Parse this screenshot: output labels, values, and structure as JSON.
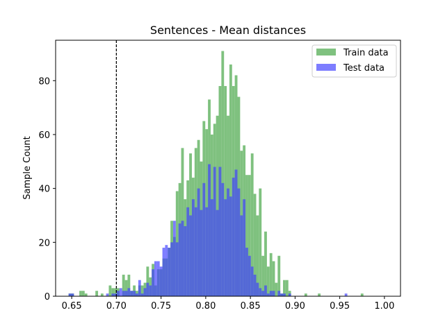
{
  "chart_data": {
    "type": "histogram",
    "title": "Sentences - Mean distances",
    "xlabel": "",
    "ylabel": "Sample Count",
    "xlim": [
      0.632,
      1.018
    ],
    "ylim": [
      0,
      95
    ],
    "xticks": [
      0.65,
      0.7,
      0.75,
      0.8,
      0.85,
      0.9,
      0.95,
      1.0
    ],
    "xtick_labels": [
      "0.65",
      "0.70",
      "0.75",
      "0.80",
      "0.85",
      "0.90",
      "0.95",
      "1.00"
    ],
    "yticks": [
      0,
      20,
      40,
      60,
      80
    ],
    "ytick_labels": [
      "0",
      "20",
      "40",
      "60",
      "80"
    ],
    "grid": false,
    "legend_position": "top-right",
    "bin_start": 0.6465,
    "bin_width": 0.003,
    "threshold_line": {
      "x": 0.7,
      "style": "dashed"
    },
    "series": [
      {
        "name": "Train data",
        "color": "#7fc17f",
        "values": [
          1,
          1,
          0,
          0,
          2,
          2,
          1,
          0,
          0,
          0,
          2,
          0,
          1,
          0,
          0,
          4,
          3,
          3,
          3,
          0,
          8,
          6,
          8,
          2,
          4,
          2,
          4,
          4,
          5,
          11,
          7,
          12,
          4,
          10,
          10,
          14,
          14,
          18,
          28,
          22,
          39,
          42,
          55,
          36,
          43,
          53,
          44,
          55,
          58,
          50,
          65,
          62,
          73,
          60,
          64,
          67,
          78,
          91,
          78,
          67,
          86,
          78,
          82,
          74,
          54,
          56,
          45,
          45,
          53,
          38,
          30,
          40,
          15,
          24,
          11,
          16,
          13,
          5,
          15,
          1,
          6,
          6,
          2,
          0,
          0,
          0,
          0,
          0,
          1,
          0,
          0,
          0,
          0,
          1,
          0,
          0,
          0,
          0,
          0,
          0,
          0,
          0,
          0,
          0,
          0,
          0,
          0,
          0,
          0,
          1
        ],
        "approximate": true
      },
      {
        "name": "Test data",
        "color": "#4040ff",
        "values": [
          1,
          1,
          0,
          0,
          0,
          0,
          0,
          0,
          0,
          0,
          0,
          0,
          0,
          0,
          1,
          0,
          1,
          1,
          2,
          3,
          2,
          2,
          3,
          2,
          2,
          1,
          6,
          1,
          3,
          5,
          4,
          10,
          13,
          13,
          11,
          18,
          19,
          18,
          20,
          28,
          20,
          27,
          28,
          26,
          33,
          30,
          36,
          33,
          40,
          32,
          42,
          33,
          49,
          36,
          48,
          32,
          48,
          42,
          36,
          40,
          37,
          44,
          47,
          40,
          30,
          36,
          18,
          15,
          11,
          8,
          5,
          3,
          2,
          4,
          1,
          2,
          2,
          0,
          2,
          1,
          1,
          0,
          1,
          0,
          0,
          0,
          0,
          0,
          0,
          0,
          0,
          0,
          0,
          0,
          0,
          0,
          0,
          0,
          0,
          0,
          0,
          0,
          0,
          1
        ],
        "approximate": true
      }
    ]
  }
}
